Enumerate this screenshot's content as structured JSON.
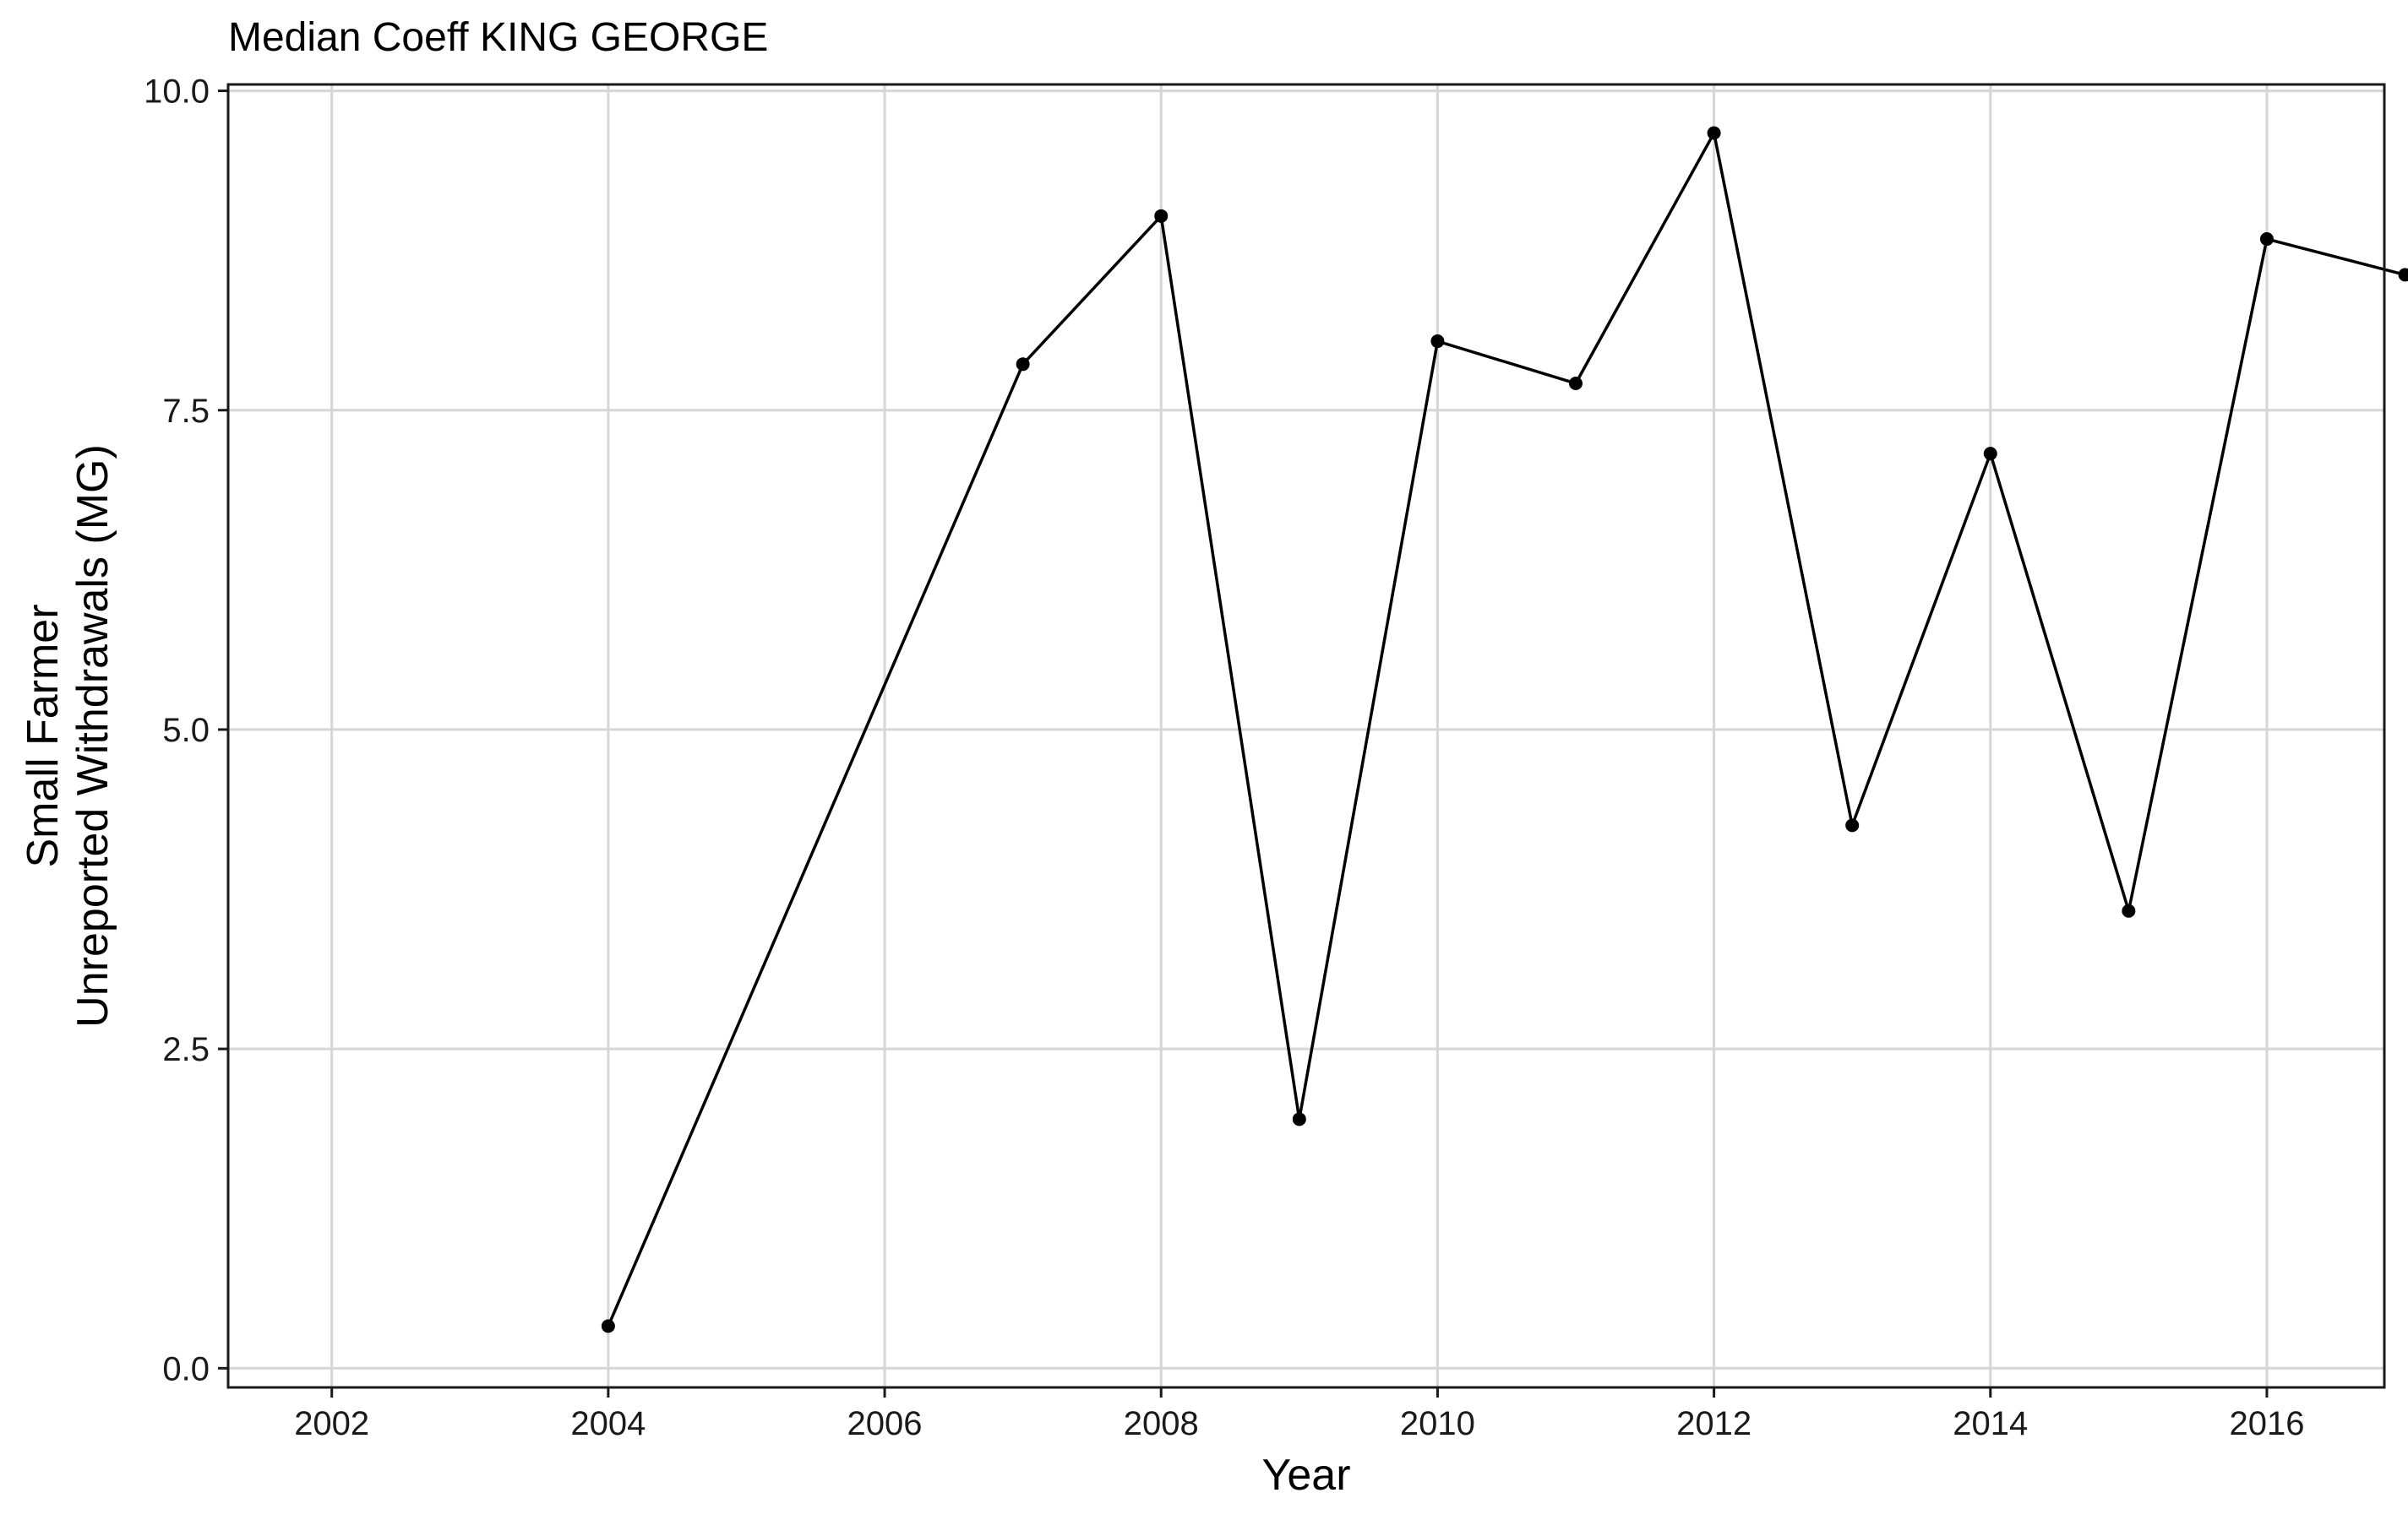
{
  "chart_data": {
    "type": "line",
    "title": "Median Coeff KING GEORGE",
    "xlabel": "Year",
    "ylabel_lines": [
      "Small Farmer",
      "Unreported Withdrawals (MG)"
    ],
    "xlim": [
      2001.25,
      2016.85
    ],
    "ylim": [
      -0.15,
      10.05
    ],
    "x_ticks": [
      2002,
      2004,
      2006,
      2008,
      2010,
      2012,
      2014,
      2016
    ],
    "x_tick_labels": [
      "2002",
      "2004",
      "2006",
      "2008",
      "2010",
      "2012",
      "2014",
      "2016"
    ],
    "y_ticks": [
      0,
      2.5,
      5,
      7.5,
      10
    ],
    "y_tick_labels": [
      "0.0",
      "2.5",
      "5.0",
      "7.5",
      "10.0"
    ],
    "grid": true,
    "series": [
      {
        "x": [
          2004.0,
          2007.0,
          2008.0,
          2009.0,
          2010.0,
          2011.0,
          2012.0,
          2013.0,
          2014.0,
          2015.0,
          2016.0,
          2017.0
        ],
        "y": [
          0.33,
          7.86,
          9.02,
          1.95,
          8.04,
          7.71,
          9.67,
          4.25,
          7.16,
          3.58,
          8.84,
          8.56
        ],
        "color": "#000000"
      }
    ]
  }
}
